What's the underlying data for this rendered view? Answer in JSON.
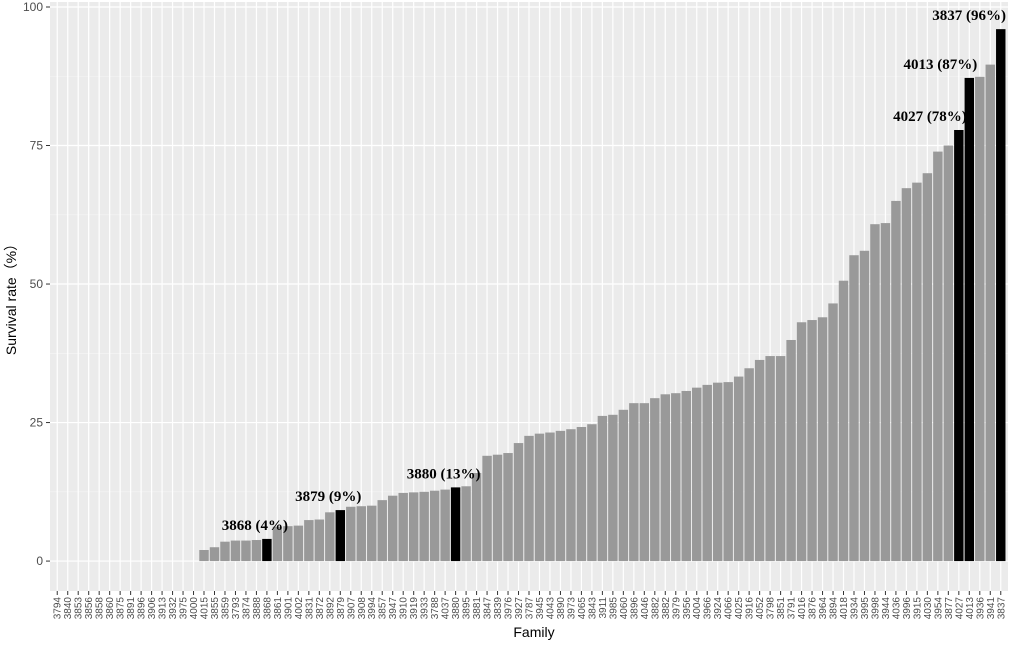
{
  "chart_data": {
    "type": "bar",
    "x_label": "Family",
    "y_label": "Survival rate（%）",
    "categories": [
      "3794",
      "3840",
      "3853",
      "3856",
      "3858",
      "3860",
      "3875",
      "3891",
      "3896",
      "3906",
      "3913",
      "3932",
      "3975",
      "4000",
      "4015",
      "3855",
      "3859",
      "3793",
      "3874",
      "3888",
      "3868",
      "3861",
      "3901",
      "4002",
      "3831",
      "3872",
      "3892",
      "3879",
      "3907",
      "3908",
      "3994",
      "3857",
      "3947",
      "3910",
      "3919",
      "3933",
      "3788",
      "4037",
      "3880",
      "3895",
      "3881",
      "3847",
      "3839",
      "3976",
      "3927",
      "3787",
      "3945",
      "4043",
      "3890",
      "3973",
      "4065",
      "3843",
      "3911",
      "3985",
      "4060",
      "3896",
      "4046",
      "3882",
      "3882",
      "3979",
      "3956",
      "4004",
      "3966",
      "3924",
      "4066",
      "4025",
      "3916",
      "4052",
      "3798",
      "3851",
      "3791",
      "4016",
      "3876",
      "3964",
      "3894",
      "4018",
      "3934",
      "3995",
      "3998",
      "3944",
      "4036",
      "3996",
      "3915",
      "4030",
      "3954",
      "3877",
      "4027",
      "4013",
      "3936",
      "3941",
      "3837"
    ],
    "values": [
      0,
      0,
      0,
      0,
      0,
      0,
      0,
      0,
      0,
      0,
      0,
      0,
      0,
      0,
      2,
      2.5,
      3.5,
      3.7,
      3.7,
      3.8,
      4,
      6.2,
      6.3,
      6.4,
      7.4,
      7.5,
      8.8,
      9.2,
      9.8,
      9.9,
      10.0,
      11.0,
      11.8,
      12.3,
      12.4,
      12.5,
      12.7,
      12.9,
      13.3,
      13.5,
      15.9,
      19.0,
      19.2,
      19.5,
      21.3,
      22.6,
      23.0,
      23.2,
      23.5,
      23.8,
      24.2,
      24.7,
      26.2,
      26.4,
      27.3,
      28.5,
      28.5,
      29.4,
      30.1,
      30.3,
      30.7,
      31.3,
      31.8,
      32.2,
      32.3,
      33.3,
      34.8,
      36.3,
      37.0,
      37.0,
      39.9,
      43.1,
      43.5,
      44.0,
      46.5,
      50.6,
      55.2,
      56.0,
      60.8,
      61.0,
      65.0,
      67.3,
      68.3,
      70.0,
      73.9,
      75.0,
      77.8,
      87.2,
      87.4,
      89.6,
      96
    ],
    "color": "#999999",
    "highlight_color": "#000000",
    "annotations": [
      {
        "text": "3868 (4%)",
        "category": "3868"
      },
      {
        "text": "3879 (9%)",
        "category": "3879"
      },
      {
        "text": "3880 (13%)",
        "category": "3880"
      },
      {
        "text": "4027 (78%)",
        "category": "4027"
      },
      {
        "text": "4013 (87%)",
        "category": "4013"
      },
      {
        "text": "3837 (96%)",
        "category": "3837"
      }
    ],
    "ylim": [
      -5.4,
      100.9
    ],
    "yticks": [
      0,
      25,
      50,
      75,
      100
    ],
    "grid": true
  }
}
